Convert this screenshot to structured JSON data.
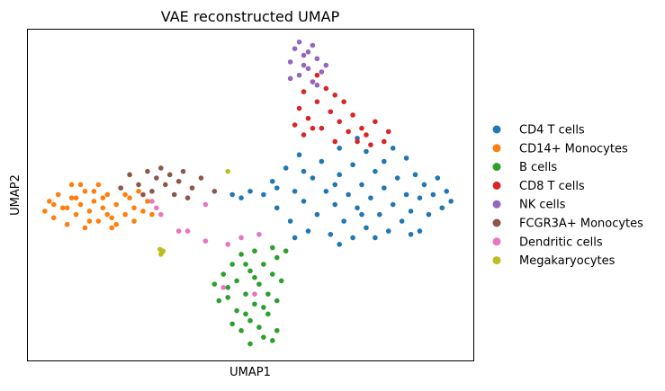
{
  "chart_data": {
    "type": "scatter",
    "title": "VAE reconstructed UMAP",
    "xlabel": "UMAP1",
    "ylabel": "UMAP2",
    "xlim": [
      0,
      10
    ],
    "ylim": [
      0,
      10
    ],
    "grid": false,
    "ticks": false,
    "legend_placement": "right",
    "series": [
      {
        "name": "CD4 T cells",
        "color": "#1f77b4",
        "points": [
          [
            5.3,
            5.0
          ],
          [
            5.5,
            5.4
          ],
          [
            5.6,
            4.6
          ],
          [
            5.8,
            5.8
          ],
          [
            5.9,
            4.2
          ],
          [
            6.0,
            5.1
          ],
          [
            6.1,
            6.2
          ],
          [
            6.2,
            4.8
          ],
          [
            6.3,
            3.9
          ],
          [
            6.4,
            5.5
          ],
          [
            6.5,
            4.4
          ],
          [
            6.6,
            6.0
          ],
          [
            6.7,
            5.1
          ],
          [
            6.8,
            3.8
          ],
          [
            6.9,
            4.7
          ],
          [
            7.0,
            5.6
          ],
          [
            7.0,
            6.4
          ],
          [
            7.1,
            4.2
          ],
          [
            7.2,
            5.0
          ],
          [
            7.3,
            3.7
          ],
          [
            7.3,
            5.9
          ],
          [
            7.4,
            4.6
          ],
          [
            7.5,
            5.3
          ],
          [
            7.6,
            6.3
          ],
          [
            7.6,
            4.0
          ],
          [
            7.7,
            4.9
          ],
          [
            7.8,
            5.7
          ],
          [
            7.9,
            4.4
          ],
          [
            8.0,
            5.2
          ],
          [
            8.0,
            6.0
          ],
          [
            8.1,
            3.9
          ],
          [
            8.2,
            4.7
          ],
          [
            8.3,
            5.5
          ],
          [
            8.4,
            4.2
          ],
          [
            8.5,
            5.0
          ],
          [
            8.5,
            6.1
          ],
          [
            8.6,
            4.5
          ],
          [
            8.7,
            5.6
          ],
          [
            8.8,
            3.9
          ],
          [
            8.8,
            4.9
          ],
          [
            8.9,
            5.3
          ],
          [
            9.0,
            4.4
          ],
          [
            9.1,
            5.0
          ],
          [
            9.2,
            5.5
          ],
          [
            9.3,
            4.6
          ],
          [
            9.4,
            5.1
          ],
          [
            9.5,
            4.8
          ],
          [
            6.2,
            5.7
          ],
          [
            6.9,
            5.3
          ],
          [
            7.4,
            6.7
          ],
          [
            8.2,
            6.4
          ],
          [
            5.6,
            5.2
          ],
          [
            4.6,
            5.0
          ],
          [
            4.8,
            4.9
          ],
          [
            5.0,
            5.1
          ],
          [
            7.0,
            3.5
          ],
          [
            7.8,
            3.7
          ],
          [
            8.6,
            3.8
          ],
          [
            6.0,
            3.7
          ],
          [
            7.5,
            4.4
          ]
        ]
      },
      {
        "name": "CD14+ Monocytes",
        "color": "#ff7f0e",
        "points": [
          [
            0.4,
            4.5
          ],
          [
            0.5,
            4.8
          ],
          [
            0.6,
            4.3
          ],
          [
            0.7,
            5.0
          ],
          [
            0.8,
            4.6
          ],
          [
            0.9,
            4.1
          ],
          [
            1.0,
            4.9
          ],
          [
            1.0,
            5.3
          ],
          [
            1.1,
            4.4
          ],
          [
            1.2,
            4.7
          ],
          [
            1.3,
            4.0
          ],
          [
            1.3,
            5.1
          ],
          [
            1.4,
            4.5
          ],
          [
            1.5,
            4.8
          ],
          [
            1.6,
            4.2
          ],
          [
            1.6,
            5.3
          ],
          [
            1.7,
            4.6
          ],
          [
            1.8,
            5.0
          ],
          [
            1.9,
            4.3
          ],
          [
            1.9,
            4.0
          ],
          [
            2.0,
            4.7
          ],
          [
            2.1,
            5.2
          ],
          [
            2.2,
            4.4
          ],
          [
            2.3,
            4.9
          ],
          [
            2.4,
            4.6
          ],
          [
            2.5,
            5.1
          ],
          [
            2.6,
            4.5
          ],
          [
            2.7,
            4.8
          ],
          [
            1.2,
            5.3
          ],
          [
            0.9,
            4.6
          ],
          [
            1.7,
            4.9
          ],
          [
            2.0,
            4.1
          ],
          [
            2.2,
            5.0
          ],
          [
            1.4,
            4.2
          ],
          [
            0.6,
            4.7
          ],
          [
            2.8,
            4.4
          ],
          [
            1.1,
            4.9
          ],
          [
            1.8,
            4.4
          ],
          [
            2.4,
            4.2
          ],
          [
            1.5,
            5.1
          ]
        ]
      },
      {
        "name": "B cells",
        "color": "#2ca02c",
        "points": [
          [
            4.2,
            2.3
          ],
          [
            4.4,
            2.6
          ],
          [
            4.5,
            1.9
          ],
          [
            4.6,
            2.9
          ],
          [
            4.7,
            1.5
          ],
          [
            4.7,
            2.4
          ],
          [
            4.8,
            3.2
          ],
          [
            4.8,
            0.9
          ],
          [
            4.9,
            2.0
          ],
          [
            5.0,
            2.7
          ],
          [
            5.0,
            1.2
          ],
          [
            5.1,
            3.3
          ],
          [
            5.1,
            1.7
          ],
          [
            5.2,
            2.3
          ],
          [
            5.3,
            0.7
          ],
          [
            5.3,
            2.9
          ],
          [
            5.4,
            1.4
          ],
          [
            5.4,
            2.0
          ],
          [
            5.5,
            2.6
          ],
          [
            5.6,
            3.1
          ],
          [
            5.6,
            1.8
          ],
          [
            5.7,
            2.4
          ],
          [
            5.8,
            3.3
          ],
          [
            5.0,
            0.5
          ],
          [
            5.5,
            0.6
          ],
          [
            4.6,
            1.1
          ],
          [
            4.9,
            2.9
          ],
          [
            5.2,
            1.0
          ],
          [
            5.3,
            1.6
          ],
          [
            4.5,
            2.2
          ],
          [
            5.1,
            2.5
          ],
          [
            5.6,
            0.9
          ],
          [
            4.9,
            1.4
          ],
          [
            5.5,
            3.4
          ],
          [
            4.3,
            1.8
          ]
        ]
      },
      {
        "name": "CD8 T cells",
        "color": "#d62728",
        "points": [
          [
            6.0,
            7.1
          ],
          [
            6.1,
            7.6
          ],
          [
            6.2,
            8.1
          ],
          [
            6.3,
            7.3
          ],
          [
            6.4,
            8.4
          ],
          [
            6.5,
            7.8
          ],
          [
            6.6,
            7.0
          ],
          [
            6.7,
            8.2
          ],
          [
            6.8,
            7.5
          ],
          [
            6.9,
            8.0
          ],
          [
            7.0,
            7.2
          ],
          [
            7.1,
            7.8
          ],
          [
            7.2,
            6.9
          ],
          [
            7.3,
            7.4
          ],
          [
            6.5,
            8.6
          ],
          [
            6.2,
            6.8
          ],
          [
            7.4,
            6.6
          ],
          [
            7.6,
            6.8
          ],
          [
            7.8,
            7.2
          ],
          [
            8.0,
            6.6
          ],
          [
            8.1,
            6.9
          ],
          [
            7.5,
            7.0
          ],
          [
            6.9,
            6.6
          ],
          [
            7.7,
            6.5
          ],
          [
            6.4,
            7.0
          ]
        ]
      },
      {
        "name": "NK cells",
        "color": "#9467bd",
        "points": [
          [
            5.9,
            9.0
          ],
          [
            6.0,
            9.4
          ],
          [
            6.1,
            8.6
          ],
          [
            6.2,
            9.2
          ],
          [
            6.3,
            8.8
          ],
          [
            6.4,
            9.5
          ],
          [
            6.4,
            8.4
          ],
          [
            6.5,
            9.1
          ],
          [
            6.6,
            8.7
          ],
          [
            6.7,
            8.9
          ],
          [
            6.1,
            9.6
          ],
          [
            6.3,
            9.3
          ],
          [
            5.9,
            8.5
          ],
          [
            6.5,
            8.3
          ],
          [
            6.2,
            8.9
          ]
        ]
      },
      {
        "name": "FCGR3A+ Monocytes",
        "color": "#8c564b",
        "points": [
          [
            2.1,
            5.2
          ],
          [
            2.3,
            5.6
          ],
          [
            2.5,
            5.3
          ],
          [
            2.7,
            5.7
          ],
          [
            2.8,
            5.1
          ],
          [
            2.9,
            5.5
          ],
          [
            3.0,
            5.8
          ],
          [
            3.1,
            5.3
          ],
          [
            3.2,
            5.6
          ],
          [
            3.3,
            5.0
          ],
          [
            3.4,
            5.4
          ],
          [
            3.5,
            5.7
          ],
          [
            3.7,
            5.2
          ],
          [
            3.9,
            5.5
          ],
          [
            4.2,
            5.1
          ],
          [
            2.6,
            5.0
          ],
          [
            3.6,
            4.9
          ]
        ]
      },
      {
        "name": "Dendritic cells",
        "color": "#e377c2",
        "points": [
          [
            2.9,
            4.6
          ],
          [
            3.0,
            4.4
          ],
          [
            3.4,
            3.9
          ],
          [
            3.6,
            3.9
          ],
          [
            4.0,
            3.6
          ],
          [
            4.5,
            3.5
          ],
          [
            4.8,
            3.7
          ],
          [
            5.2,
            3.8
          ],
          [
            4.4,
            2.2
          ],
          [
            5.1,
            2.0
          ],
          [
            4.0,
            4.7
          ],
          [
            2.8,
            4.8
          ]
        ]
      },
      {
        "name": "Megakaryocytes",
        "color": "#bcbd22",
        "points": [
          [
            3.0,
            3.2
          ],
          [
            3.05,
            3.3
          ],
          [
            2.98,
            3.35
          ],
          [
            3.02,
            3.25
          ],
          [
            4.5,
            5.7
          ]
        ]
      }
    ]
  }
}
